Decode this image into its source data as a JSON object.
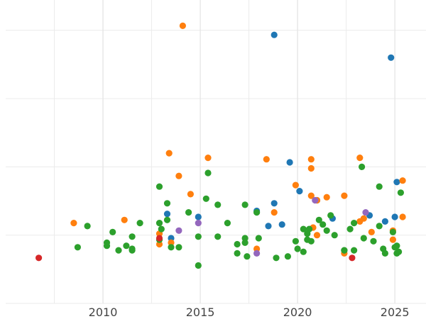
{
  "chart_data": {
    "type": "scatter",
    "title": "",
    "xlabel": "",
    "ylabel": "",
    "xlim": [
      2005,
      2026.6
    ],
    "ylim": [
      0,
      2.0
    ],
    "grid": true,
    "legend": "none",
    "x_ticks": [
      {
        "value": 2010,
        "label": "2010"
      },
      {
        "value": 2015,
        "label": "2015"
      },
      {
        "value": 2020,
        "label": "2020"
      },
      {
        "value": 2025,
        "label": "2025"
      }
    ],
    "series": [
      {
        "color": "#1f77b4",
        "points": [
          [
            2018.8,
            1.77
          ],
          [
            2024.8,
            1.62
          ],
          [
            2019.6,
            0.93
          ],
          [
            2025.1,
            0.8
          ],
          [
            2020.1,
            0.74
          ],
          [
            2021.0,
            0.68
          ],
          [
            2018.8,
            0.66
          ],
          [
            2017.9,
            0.61
          ],
          [
            2013.3,
            0.59
          ],
          [
            2014.9,
            0.57
          ],
          [
            2021.8,
            0.56
          ],
          [
            2023.7,
            0.58
          ],
          [
            2025.0,
            0.57
          ],
          [
            2024.5,
            0.54
          ],
          [
            2019.2,
            0.52
          ],
          [
            2018.5,
            0.51
          ],
          [
            2013.5,
            0.43
          ]
        ]
      },
      {
        "color": "#ff7f0e",
        "points": [
          [
            2014.1,
            1.83
          ],
          [
            2013.4,
            0.99
          ],
          [
            2015.4,
            0.96
          ],
          [
            2018.4,
            0.95
          ],
          [
            2020.7,
            0.95
          ],
          [
            2020.7,
            0.89
          ],
          [
            2013.9,
            0.84
          ],
          [
            2023.2,
            0.96
          ],
          [
            2025.4,
            0.81
          ],
          [
            2019.9,
            0.78
          ],
          [
            2014.5,
            0.72
          ],
          [
            2020.7,
            0.71
          ],
          [
            2021.5,
            0.7
          ],
          [
            2022.4,
            0.71
          ],
          [
            2021.0,
            0.68
          ],
          [
            2018.8,
            0.6
          ],
          [
            2025.4,
            0.57
          ],
          [
            2023.4,
            0.56
          ],
          [
            2023.2,
            0.54
          ],
          [
            2008.5,
            0.53
          ],
          [
            2011.1,
            0.55
          ],
          [
            2020.8,
            0.5
          ],
          [
            2012.9,
            0.46
          ],
          [
            2021.0,
            0.45
          ],
          [
            2023.8,
            0.47
          ],
          [
            2024.9,
            0.48
          ],
          [
            2024.9,
            0.42
          ],
          [
            2012.9,
            0.39
          ],
          [
            2013.5,
            0.4
          ],
          [
            2017.9,
            0.36
          ],
          [
            2022.4,
            0.33
          ]
        ]
      },
      {
        "color": "#2ca02c",
        "points": [
          [
            2015.4,
            0.86
          ],
          [
            2012.9,
            0.77
          ],
          [
            2023.3,
            0.9
          ],
          [
            2024.2,
            0.77
          ],
          [
            2025.3,
            0.73
          ],
          [
            2015.3,
            0.69
          ],
          [
            2013.3,
            0.66
          ],
          [
            2015.9,
            0.65
          ],
          [
            2017.3,
            0.65
          ],
          [
            2014.4,
            0.6
          ],
          [
            2017.9,
            0.6
          ],
          [
            2021.7,
            0.58
          ],
          [
            2009.2,
            0.51
          ],
          [
            2011.9,
            0.53
          ],
          [
            2012.9,
            0.53
          ],
          [
            2016.4,
            0.53
          ],
          [
            2013.3,
            0.55
          ],
          [
            2021.1,
            0.55
          ],
          [
            2021.3,
            0.52
          ],
          [
            2022.9,
            0.53
          ],
          [
            2024.2,
            0.51
          ],
          [
            2020.3,
            0.49
          ],
          [
            2020.6,
            0.49
          ],
          [
            2022.7,
            0.49
          ],
          [
            2021.5,
            0.48
          ],
          [
            2010.5,
            0.47
          ],
          [
            2021.9,
            0.45
          ],
          [
            2020.5,
            0.46
          ],
          [
            2024.9,
            0.47
          ],
          [
            2011.5,
            0.44
          ],
          [
            2014.9,
            0.44
          ],
          [
            2015.9,
            0.44
          ],
          [
            2017.3,
            0.43
          ],
          [
            2018.0,
            0.43
          ],
          [
            2023.4,
            0.43
          ],
          [
            2020.5,
            0.42
          ],
          [
            2020.7,
            0.41
          ],
          [
            2019.9,
            0.41
          ],
          [
            2012.9,
            0.42
          ],
          [
            2010.2,
            0.4
          ],
          [
            2011.2,
            0.38
          ],
          [
            2013.0,
            0.49
          ],
          [
            2016.9,
            0.39
          ],
          [
            2017.3,
            0.4
          ],
          [
            2023.9,
            0.41
          ],
          [
            2013.5,
            0.37
          ],
          [
            2013.9,
            0.37
          ],
          [
            2008.7,
            0.37
          ],
          [
            2010.2,
            0.38
          ],
          [
            2020.0,
            0.36
          ],
          [
            2025.1,
            0.38
          ],
          [
            2025.0,
            0.37
          ],
          [
            2011.5,
            0.36
          ],
          [
            2010.8,
            0.35
          ],
          [
            2011.5,
            0.35
          ],
          [
            2022.4,
            0.35
          ],
          [
            2022.4,
            0.35
          ],
          [
            2022.9,
            0.35
          ],
          [
            2024.4,
            0.36
          ],
          [
            2020.3,
            0.34
          ],
          [
            2024.5,
            0.33
          ],
          [
            2025.1,
            0.33
          ],
          [
            2025.2,
            0.34
          ],
          [
            2016.9,
            0.33
          ],
          [
            2017.4,
            0.31
          ],
          [
            2018.9,
            0.3
          ],
          [
            2019.5,
            0.31
          ],
          [
            2014.9,
            0.25
          ]
        ]
      },
      {
        "color": "#d62728",
        "points": [
          [
            2006.7,
            0.3
          ],
          [
            2012.9,
            0.43
          ],
          [
            2022.8,
            0.3
          ]
        ]
      },
      {
        "color": "#9467bd",
        "points": [
          [
            2014.9,
            0.53
          ],
          [
            2023.5,
            0.6
          ],
          [
            2013.9,
            0.48
          ],
          [
            2020.9,
            0.68
          ],
          [
            2017.9,
            0.33
          ]
        ]
      }
    ]
  }
}
